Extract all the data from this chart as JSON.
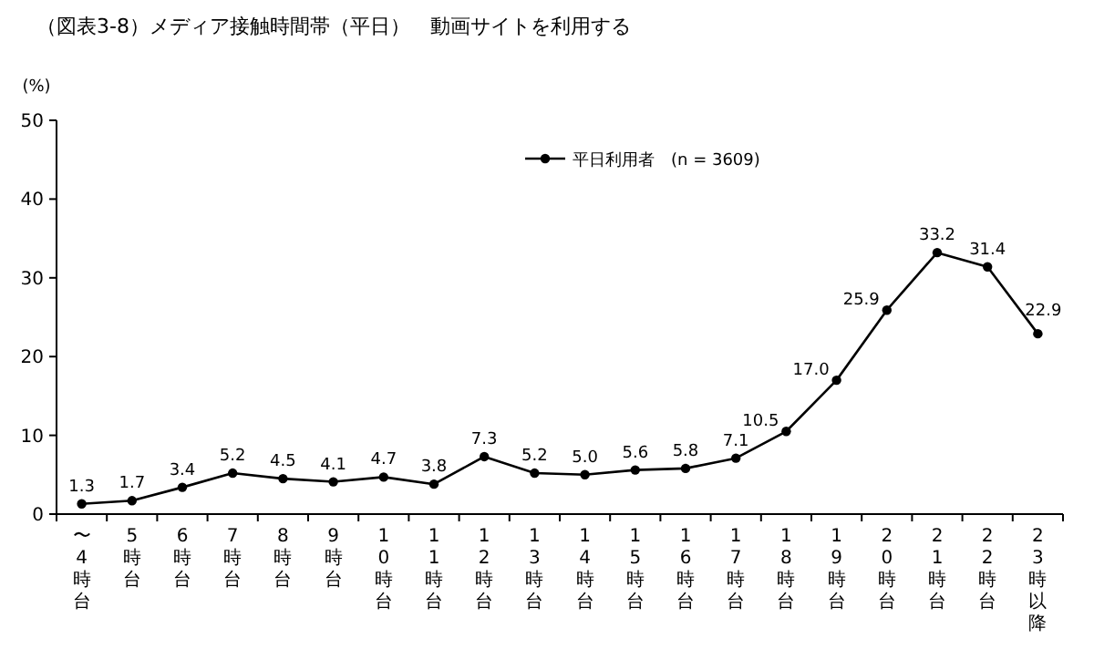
{
  "chart_data": {
    "type": "line",
    "title": "（図表3-8）メディア接触時間帯（平日）　動画サイトを利用する",
    "ylabel": "(%)",
    "categories": [
      "〜4時台",
      "5時台",
      "6時台",
      "7時台",
      "8時台",
      "9時台",
      "10時台",
      "11時台",
      "12時台",
      "13時台",
      "14時台",
      "15時台",
      "16時台",
      "17時台",
      "18時台",
      "19時台",
      "20時台",
      "21時台",
      "22時台",
      "23時以降"
    ],
    "series": [
      {
        "name": "平日利用者　(n = 3609)",
        "color": "#000000",
        "values": [
          1.3,
          1.7,
          3.4,
          5.2,
          4.5,
          4.1,
          4.7,
          3.8,
          7.3,
          5.2,
          5.0,
          5.6,
          5.8,
          7.1,
          10.5,
          17.0,
          25.9,
          33.2,
          31.4,
          22.9
        ],
        "value_labels": [
          "1.3",
          "1.7",
          "3.4",
          "5.2",
          "4.5",
          "4.1",
          "4.7",
          "3.8",
          "7.3",
          "5.2",
          "5.0",
          "5.6",
          "5.8",
          "7.1",
          "10.5",
          "17.0",
          "25.9",
          "33.2",
          "31.4",
          "22.9"
        ]
      }
    ],
    "ylim": [
      0,
      50
    ],
    "yticks": [
      0,
      10,
      20,
      30,
      40,
      50
    ],
    "marker": "circle",
    "line_style": "solid",
    "legend": "top",
    "grid": false
  }
}
